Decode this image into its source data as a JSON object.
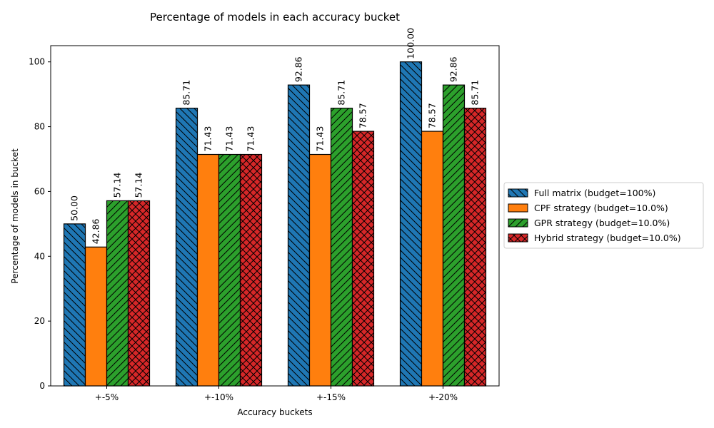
{
  "chart_data": {
    "type": "bar",
    "title": "Percentage of models in each accuracy bucket",
    "xlabel": "Accuracy buckets",
    "ylabel": "Percentage of models in bucket",
    "categories": [
      "+-5%",
      "+-10%",
      "+-15%",
      "+-20%"
    ],
    "ylim": [
      0,
      105
    ],
    "yticks": [
      0,
      20,
      40,
      60,
      80,
      100
    ],
    "grid": false,
    "legend_position": "right",
    "series": [
      {
        "name": "Full matrix (budget=100%)",
        "values": [
          50.0,
          85.71,
          92.86,
          100.0
        ],
        "color": "#1f77b4",
        "hatch": "backslash"
      },
      {
        "name": "CPF strategy (budget=10.0%)",
        "values": [
          42.86,
          71.43,
          71.43,
          78.57
        ],
        "color": "#ff7f0e",
        "hatch": "none"
      },
      {
        "name": "GPR strategy (budget=10.0%)",
        "values": [
          57.14,
          71.43,
          85.71,
          92.86
        ],
        "color": "#2ca02c",
        "hatch": "slash"
      },
      {
        "name": "Hybrid strategy (budget=10.0%)",
        "values": [
          57.14,
          71.43,
          78.57,
          85.71
        ],
        "color": "#d62728",
        "hatch": "cross"
      }
    ]
  }
}
